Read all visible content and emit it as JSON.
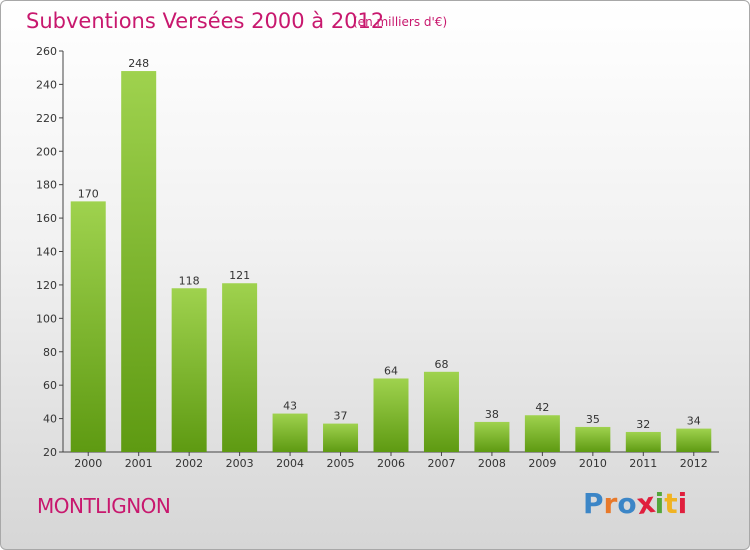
{
  "header": {
    "title": "Subventions Versées 2000 à 2012",
    "unit_note": "(en milliers d'€)"
  },
  "footer": {
    "commune": "MONTLIGNON",
    "logo_text": "Proxiti"
  },
  "colors": {
    "title": "#c8186e",
    "bar_top": "#9fd24e",
    "bar_bottom": "#5e9a12",
    "logo": [
      "#3c86c7",
      "#e8792a",
      "#3c86c7",
      "#e01f3d",
      "#54a63a",
      "#f0b323",
      "#e01f3d"
    ]
  },
  "chart_data": {
    "type": "bar",
    "title": "Subventions Versées 2000 à 2012",
    "subtitle": "(en milliers d'€)",
    "categories": [
      "2000",
      "2001",
      "2002",
      "2003",
      "2004",
      "2005",
      "2006",
      "2007",
      "2008",
      "2009",
      "2010",
      "2011",
      "2012"
    ],
    "values": [
      170,
      248,
      118,
      121,
      43,
      37,
      64,
      68,
      38,
      42,
      35,
      32,
      34
    ],
    "ylim": [
      20,
      260
    ],
    "yticks": [
      20,
      40,
      60,
      80,
      100,
      120,
      140,
      160,
      180,
      200,
      220,
      240,
      260
    ],
    "grid": false,
    "data_labels": true
  }
}
